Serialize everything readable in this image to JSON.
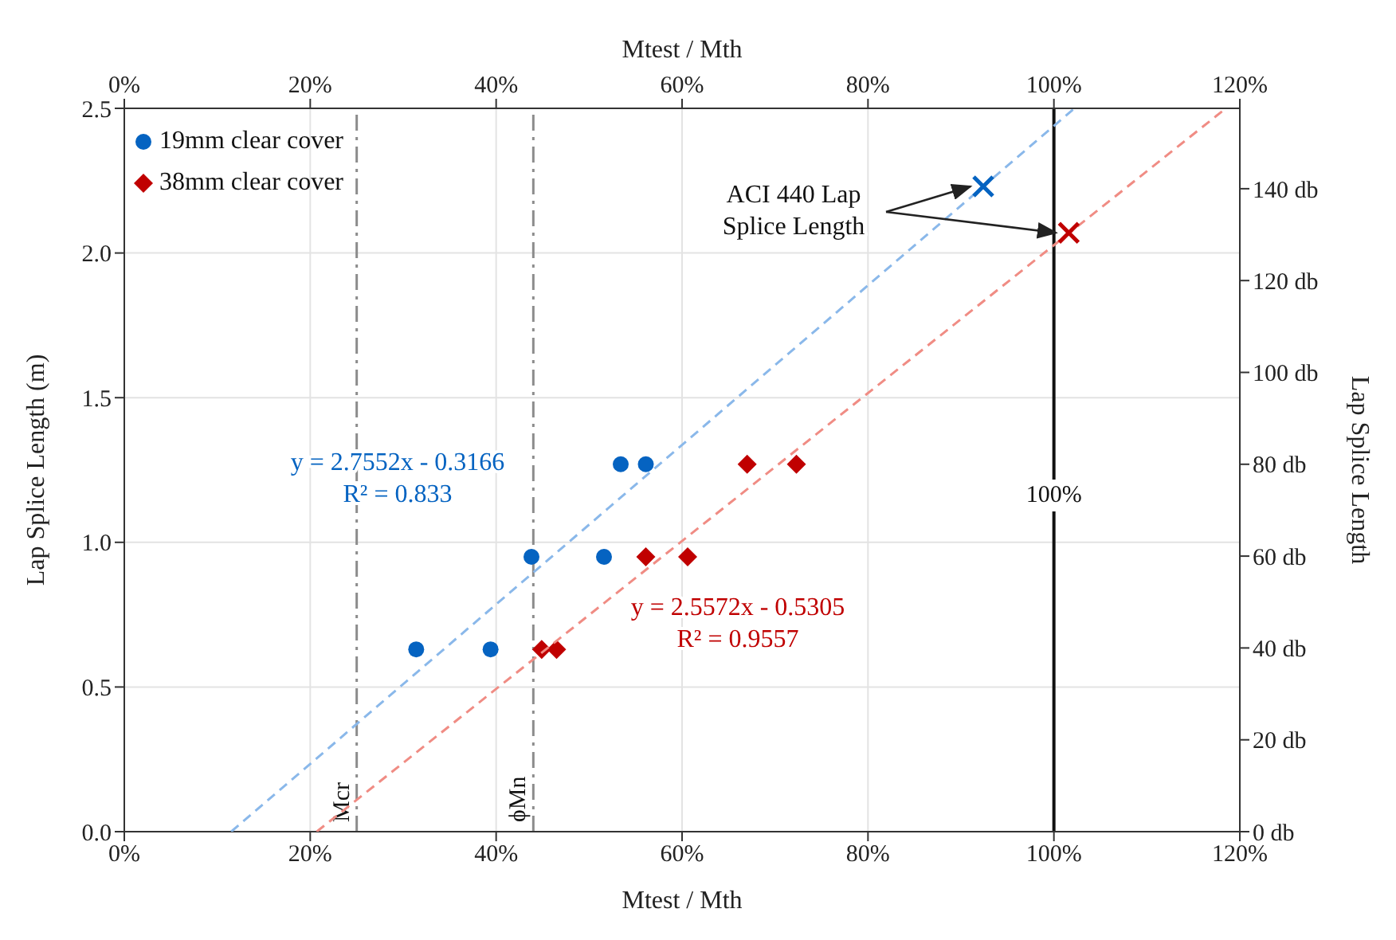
{
  "chart_data": {
    "type": "scatter",
    "xlabel": "Mtest / Mth",
    "x2label": "Mtest / Mth",
    "ylabel": "Lap Splice Length (m)",
    "y2label": "Lap Splice Length",
    "xlim": [
      0,
      120
    ],
    "xticks": [
      {
        "value": 0,
        "label": "0%"
      },
      {
        "value": 20,
        "label": "20%"
      },
      {
        "value": 40,
        "label": "40%"
      },
      {
        "value": 60,
        "label": "60%"
      },
      {
        "value": 80,
        "label": "80%"
      },
      {
        "value": 100,
        "label": "100%"
      },
      {
        "value": 120,
        "label": "120%"
      }
    ],
    "x2lim": [
      0,
      120
    ],
    "x2ticks": [
      {
        "value": 0,
        "label": "0%"
      },
      {
        "value": 20,
        "label": "20%"
      },
      {
        "value": 40,
        "label": "40%"
      },
      {
        "value": 60,
        "label": "60%"
      },
      {
        "value": 80,
        "label": "80%"
      },
      {
        "value": 100,
        "label": "100%"
      },
      {
        "value": 120,
        "label": "120%"
      }
    ],
    "ylim": [
      0,
      2.5
    ],
    "yticks": [
      {
        "value": 0,
        "label": "0.0"
      },
      {
        "value": 0.5,
        "label": "0.5"
      },
      {
        "value": 1,
        "label": "1.0"
      },
      {
        "value": 1.5,
        "label": "1.5"
      },
      {
        "value": 2,
        "label": "2.0"
      },
      {
        "value": 2.5,
        "label": "2.5"
      }
    ],
    "y2lim": [
      0,
      157.5
    ],
    "y2ticks": [
      {
        "value": 0,
        "label": "0 db"
      },
      {
        "value": 20,
        "label": "20 db"
      },
      {
        "value": 40,
        "label": "40 db"
      },
      {
        "value": 60,
        "label": "60 db"
      },
      {
        "value": 80,
        "label": "80 db"
      },
      {
        "value": 100,
        "label": "100 db"
      },
      {
        "value": 120,
        "label": "120 db"
      },
      {
        "value": 140,
        "label": "140 db"
      }
    ],
    "grid": true,
    "legend": "top left",
    "series": [
      {
        "name": "19mm clear cover",
        "type": "scatter",
        "marker": "circle",
        "color": "#0563c1",
        "x": [
          31.4,
          39.4,
          43.8,
          51.6,
          53.4,
          56.1
        ],
        "values": [
          0.63,
          0.63,
          0.95,
          0.95,
          1.27,
          1.27
        ]
      },
      {
        "name": "38mm clear cover",
        "type": "scatter",
        "marker": "diamond",
        "color": "#c00000",
        "x": [
          44.9,
          46.5,
          56.1,
          60.6,
          67.0,
          72.3
        ],
        "values": [
          0.63,
          0.63,
          0.95,
          0.95,
          1.27,
          1.27
        ]
      },
      {
        "type": "line",
        "line_style": "dashed",
        "marker": "none",
        "color": "#8ab8ea",
        "x": [
          11.5,
          102.2
        ],
        "values": [
          0,
          2.5
        ]
      },
      {
        "type": "line",
        "line_style": "dashed",
        "marker": "none",
        "color": "#f08c84",
        "x": [
          20.7,
          118.5
        ],
        "values": [
          0,
          2.5
        ]
      },
      {
        "type": "scatter",
        "marker": "cross",
        "color": "#0563c1",
        "x": [
          92.4
        ],
        "values": [
          2.23
        ]
      },
      {
        "type": "scatter",
        "marker": "cross",
        "color": "#c00000",
        "x": [
          101.6
        ],
        "values": [
          2.07
        ]
      }
    ],
    "ref_lines": [
      {
        "axis": "x",
        "value": 25,
        "label": "Mcr",
        "color": "#8c8c8c",
        "line_style": "dashed"
      },
      {
        "axis": "x",
        "value": 44,
        "label": "ϕMn",
        "color": "#8c8c8c",
        "line_style": "dashed"
      },
      {
        "axis": "x",
        "value": 100,
        "label": "100%",
        "color": "#111111",
        "line_style": "solid"
      }
    ],
    "annotations": [
      "y = 2.7552x - 0.3166\nR² = 0.833",
      "y = 2.5572x - 0.5305\nR² = 0.9557",
      {
        "text": "ACI 440 Lap\nSplice Length",
        "x": 101.6,
        "y": 2.07
      }
    ]
  }
}
